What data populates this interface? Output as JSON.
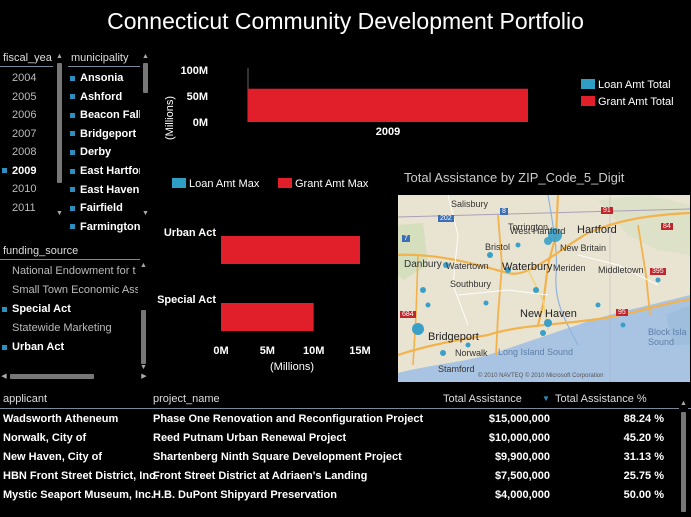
{
  "title": "Connecticut Community Development Portfolio",
  "slicers": {
    "fiscal_year": {
      "header": "fiscal_yea",
      "items": [
        {
          "label": "2004",
          "selected": false
        },
        {
          "label": "2005",
          "selected": false
        },
        {
          "label": "2006",
          "selected": false
        },
        {
          "label": "2007",
          "selected": false
        },
        {
          "label": "2008",
          "selected": false
        },
        {
          "label": "2009",
          "selected": true
        },
        {
          "label": "2010",
          "selected": false
        },
        {
          "label": "2011",
          "selected": false
        }
      ]
    },
    "municipality": {
      "header": "municipality",
      "items": [
        "Ansonia",
        "Ashford",
        "Beacon Falls",
        "Bridgeport",
        "Derby",
        "East Hartford",
        "East Haven",
        "Fairfield",
        "Farmington"
      ]
    },
    "funding_source": {
      "header": "funding_source",
      "items": [
        {
          "label": "National Endowment for t",
          "selected": false
        },
        {
          "label": "Small Town Economic Ass",
          "selected": false
        },
        {
          "label": "Special Act",
          "selected": true
        },
        {
          "label": "Statewide Marketing",
          "selected": false
        },
        {
          "label": "Urban Act",
          "selected": true
        }
      ]
    }
  },
  "colors": {
    "loan": "#2e9ec4",
    "grant": "#e01f2b",
    "accent": "#2b8fbf"
  },
  "chart_data": [
    {
      "type": "bar",
      "orientation": "vertical",
      "categories": [
        "2009"
      ],
      "series": [
        {
          "name": "Loan Amt Total",
          "values": [
            0
          ]
        },
        {
          "name": "Grant Amt Total",
          "values": [
            64
          ]
        }
      ],
      "ylabel": "(Millions)",
      "yticks": [
        "0M",
        "50M",
        "100M"
      ],
      "ylim": [
        0,
        100
      ],
      "legend": "right"
    },
    {
      "type": "bar",
      "orientation": "horizontal",
      "categories": [
        "Urban Act",
        "Special Act"
      ],
      "series": [
        {
          "name": "Loan Amt Max",
          "values": [
            0,
            0
          ]
        },
        {
          "name": "Grant Amt Max",
          "values": [
            15,
            10
          ]
        }
      ],
      "xlabel": "(Millions)",
      "xticks": [
        "0M",
        "5M",
        "10M",
        "15M"
      ],
      "xlim": [
        0,
        15
      ],
      "legend": "top"
    }
  ],
  "map": {
    "title": "Total Assistance by ZIP_Code_5_Digit",
    "places": [
      "Salisbury",
      "Torrington",
      "Hartford",
      "West Hartford",
      "New Britain",
      "Bristol",
      "Waterbury",
      "Danbury",
      "Watertown",
      "Southbury",
      "Meriden",
      "Middletown",
      "New Haven",
      "Bridgeport",
      "Norwalk",
      "Stamford",
      "Long Island Sound",
      "Block Isla Sound"
    ],
    "roads": [
      "202",
      "8",
      "91",
      "84",
      "395",
      "95",
      "684",
      "7"
    ],
    "copyright": "© 2010 NAVTEQ  © 2010 Microsoft Corporation"
  },
  "table": {
    "columns": [
      "applicant",
      "project_name",
      "Total Assistance",
      "Total Assistance %"
    ],
    "rows": [
      [
        "Wadsworth Atheneum",
        "Phase One Renovation and Reconfiguration Project",
        "$15,000,000",
        "88.24 %"
      ],
      [
        "Norwalk, City of",
        "Reed Putnam Urban Renewal Project",
        "$10,000,000",
        "45.20 %"
      ],
      [
        "New Haven, City of",
        "Shartenberg Ninth Square Development Project",
        "$9,900,000",
        "31.13 %"
      ],
      [
        "HBN Front Street District, Inc.",
        "Front Street District at Adriaen's Landing",
        "$7,500,000",
        "25.75 %"
      ],
      [
        "Mystic Seaport Museum, Inc.",
        "H.B. DuPont Shipyard Preservation",
        "$4,000,000",
        "50.00 %"
      ]
    ]
  }
}
